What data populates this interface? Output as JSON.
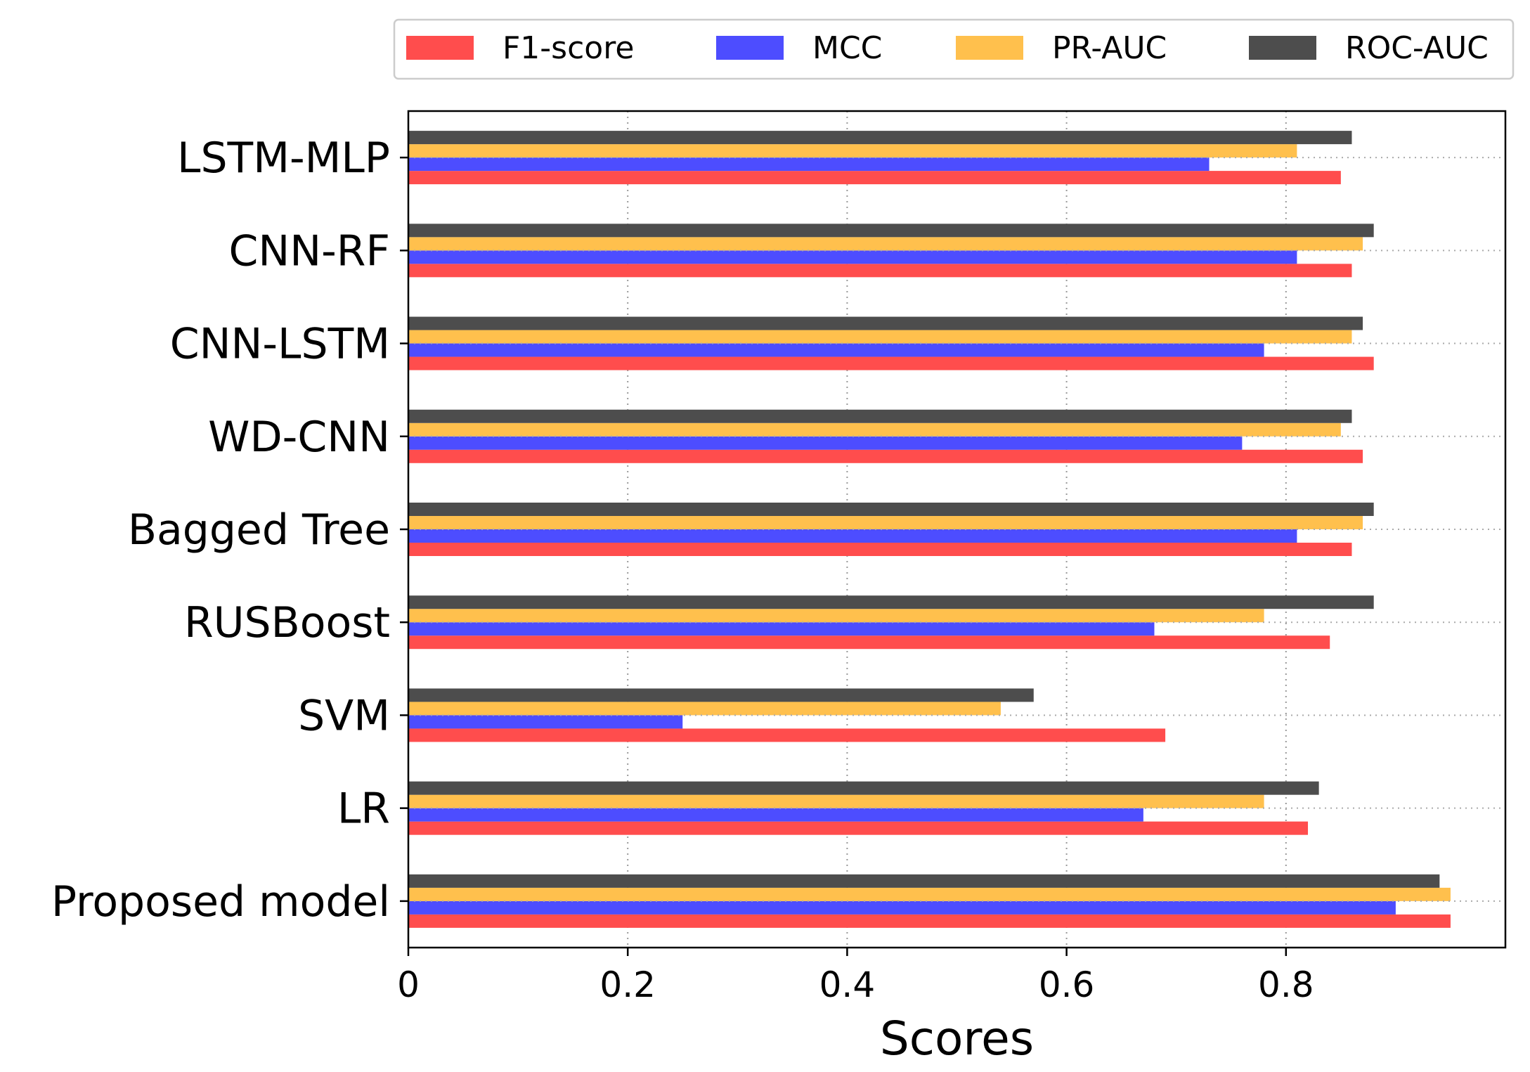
{
  "chart_data": {
    "type": "bar",
    "orientation": "horizontal",
    "title": "",
    "xlabel": "Scores",
    "ylabel": "",
    "xlim": [
      0,
      1.0
    ],
    "x_ticks": [
      0,
      0.2,
      0.4,
      0.6,
      0.8
    ],
    "x_tick_labels": [
      "0",
      "0.2",
      "0.4",
      "0.6",
      "0.8"
    ],
    "categories": [
      "Proposed model",
      "LR",
      "SVM",
      "RUSBoost",
      "Bagged Tree",
      "WD-CNN",
      "CNN-LSTM",
      "CNN-RF",
      "LSTM-MLP"
    ],
    "series": [
      {
        "name": "F1-score",
        "color": "#ff4d4d",
        "values": [
          0.95,
          0.82,
          0.69,
          0.84,
          0.86,
          0.87,
          0.88,
          0.86,
          0.85
        ]
      },
      {
        "name": "MCC",
        "color": "#4d4dff",
        "values": [
          0.9,
          0.67,
          0.25,
          0.68,
          0.81,
          0.76,
          0.78,
          0.81,
          0.73
        ]
      },
      {
        "name": "PR-AUC",
        "color": "#ffc04d",
        "values": [
          0.95,
          0.78,
          0.54,
          0.78,
          0.87,
          0.85,
          0.86,
          0.87,
          0.81
        ]
      },
      {
        "name": "ROC-AUC",
        "color": "#4d4d4d",
        "values": [
          0.94,
          0.83,
          0.57,
          0.88,
          0.88,
          0.86,
          0.87,
          0.88,
          0.86
        ]
      }
    ],
    "grid": true,
    "legend_position": "top-right"
  }
}
